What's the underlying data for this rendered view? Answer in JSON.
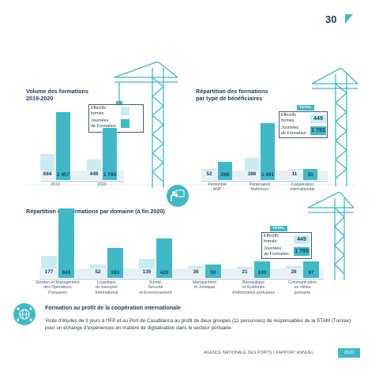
{
  "page": {
    "number": "30"
  },
  "chart1": {
    "title_line1": "Volume des formations",
    "title_line2": "2019-2020",
    "legend": {
      "effectifs": "Effectifs\nformés",
      "journees": "Journées\nde Formation"
    },
    "chart_data": {
      "type": "bar",
      "categories": [
        "2019",
        "2020"
      ],
      "series": [
        {
          "name": "Effectifs formés",
          "values": [
            684,
            449
          ],
          "labels": [
            "684",
            "449"
          ]
        },
        {
          "name": "Journées de Formation",
          "values": [
            2457,
            1793
          ],
          "labels": [
            "2 457",
            "1 793"
          ]
        }
      ]
    }
  },
  "chart2": {
    "title_line1": "Répartition des formations",
    "title_line2": "par type de bénéficiaires",
    "legend": {
      "total_tag": "TOTAL",
      "effectifs": "Effectifs\nformés",
      "journees": "Journées\nde Formation",
      "total_effectifs": "449",
      "total_journees": "1 793"
    },
    "chart_data": {
      "type": "bar",
      "categories": [
        "Personnel\nANP",
        "Partenaires\nNationaux",
        "Coopération\ninternationale"
      ],
      "series": [
        {
          "name": "Effectifs formés",
          "values": [
            52,
            386,
            11
          ],
          "labels": [
            "52",
            "386",
            "11"
          ]
        },
        {
          "name": "Journées de Formation",
          "values": [
            269,
            1491,
            33
          ],
          "labels": [
            "269",
            "1 491",
            "33"
          ]
        }
      ]
    }
  },
  "chart3": {
    "title": "Répartition des formations par domaine (à fin 2020)",
    "legend": {
      "total_tag": "TOTAL",
      "effectifs": "Effectifs\nformés",
      "journees": "Journées\nde Formation",
      "total_effectifs": "449",
      "total_journees": "1 793"
    },
    "chart_data": {
      "type": "bar",
      "categories": [
        "Gestion et Management\ndes Opérations\nPortuaires",
        "Logistique\ndu transport\nInternational",
        "Sûreté,\nSécurité\net Environnement",
        "Management\net Juridique",
        "Bureautique\net Systèmes\nd'information portuaires",
        "Communication\nen milieu\nportuaire"
      ],
      "series": [
        {
          "name": "Effectifs formés",
          "values": [
            177,
            52,
            135,
            36,
            21,
            28
          ],
          "labels": [
            "177",
            "52",
            "135",
            "36",
            "21",
            "28"
          ]
        },
        {
          "name": "Journées de Formation",
          "values": [
            843,
            283,
            420,
            50,
            100,
            97
          ],
          "labels": [
            "843",
            "283",
            "420",
            "50",
            "100",
            "97"
          ]
        }
      ]
    }
  },
  "cooperation": {
    "title": "Formation au profit de la coopération internationale",
    "text": "Visite d'études de 3 jours à l'IFP et au Port de Casablanca au profit de deux groupes (11 personnes) de responsables de la STAM (Tunisie) pour un échange d'expériences en matière de digitalisation dans le secteur portuaire."
  },
  "footer": {
    "text": "AGENCE NATIONALE DES PORTS  |  RAPPORT ANNUEL",
    "year": "2020"
  },
  "colors": {
    "accent": "#3fb9c7",
    "light": "#c9ecf0",
    "navy": "#1b3a5c"
  },
  "icons": [
    "crane-icon",
    "presenter-icon",
    "globe-network-icon"
  ]
}
